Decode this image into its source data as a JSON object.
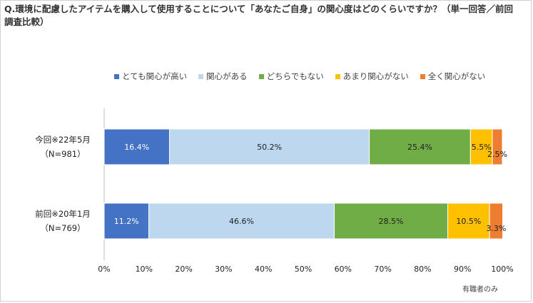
{
  "title": "Q.環境に配慮したアイテムを購入して使用することについて「あなたご自身」の関心度はどのくらいですか？（単一回答／前回調査比較）",
  "footnote": "有職者のみ",
  "chart_data": {
    "type": "bar",
    "orientation": "horizontal",
    "stacked": "100%",
    "categories": [
      {
        "line1": "今回※22年5月",
        "line2": "（N=981）"
      },
      {
        "line1": "前回※20年1月",
        "line2": "（N=769）"
      }
    ],
    "series": [
      {
        "name": "とても関心が高い",
        "color": "#4472c4",
        "label_color": "#ffffff",
        "values": [
          16.4,
          11.2
        ]
      },
      {
        "name": "関心がある",
        "color": "#bdd7ee",
        "label_color": "#222222",
        "values": [
          50.2,
          46.6
        ]
      },
      {
        "name": "どちらでもない",
        "color": "#70ad47",
        "label_color": "#222222",
        "values": [
          25.4,
          28.5
        ]
      },
      {
        "name": "あまり関心がない",
        "color": "#ffc000",
        "label_color": "#222222",
        "values": [
          5.5,
          10.5
        ]
      },
      {
        "name": "全く関心がない",
        "color": "#ed7d31",
        "label_color": "#222222",
        "values": [
          2.5,
          3.3
        ]
      }
    ],
    "xlim": [
      0,
      100
    ],
    "xticks": [
      "0%",
      "10%",
      "20%",
      "30%",
      "40%",
      "50%",
      "60%",
      "70%",
      "80%",
      "90%",
      "100%"
    ],
    "legend_position": "top",
    "grid": false
  }
}
